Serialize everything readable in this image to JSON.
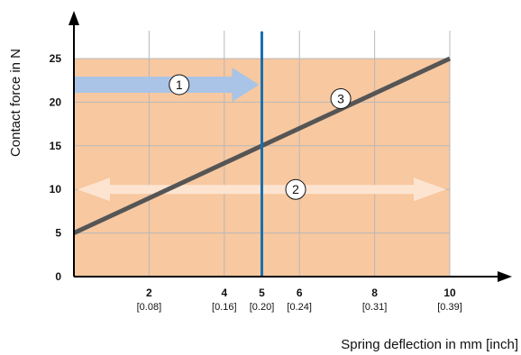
{
  "chart_data": {
    "type": "line",
    "xlabel": "Spring deflection in mm [inch]",
    "ylabel": "Contact force in N",
    "xlim": [
      0,
      10
    ],
    "ylim": [
      0,
      25
    ],
    "y_ticks": [
      "0",
      "5",
      "10",
      "15",
      "20",
      "25"
    ],
    "y_tick_values": [
      0,
      5,
      10,
      15,
      20,
      25
    ],
    "x_ticks": [
      {
        "value": 2,
        "label": "2",
        "sub": "[0.08]"
      },
      {
        "value": 4,
        "label": "4",
        "sub": "[0.16]"
      },
      {
        "value": 5,
        "label": "5",
        "sub": "[0.20]"
      },
      {
        "value": 6,
        "label": "6",
        "sub": "[0.24]"
      },
      {
        "value": 8,
        "label": "8",
        "sub": "[0.31]"
      },
      {
        "value": 10,
        "label": "10",
        "sub": "[0.39]"
      }
    ],
    "series": [
      {
        "x": [
          0,
          10
        ],
        "y": [
          5,
          25
        ]
      }
    ],
    "region": {
      "x": [
        0,
        10
      ],
      "y": [
        0,
        25
      ]
    },
    "marker_line_x": 5,
    "grid": true,
    "callouts": [
      {
        "label": "1",
        "kind": "arrow-right",
        "x_start": 0,
        "x_end": 5,
        "y": 22,
        "at_x": 2.8
      },
      {
        "label": "2",
        "kind": "double-arrow",
        "x_start": 0,
        "x_end": 10,
        "y": 10,
        "at_x": 5.9
      },
      {
        "label": "3",
        "kind": "point-label",
        "x": 7.1,
        "y": 20.4
      }
    ],
    "colors": {
      "region": "#f8c8a0",
      "line": "#555555",
      "marker_line": "#1a6fae",
      "arrow1": "#a9c4e6",
      "arrow2": "#fce4d0",
      "grid": "#b8b8b8"
    }
  }
}
